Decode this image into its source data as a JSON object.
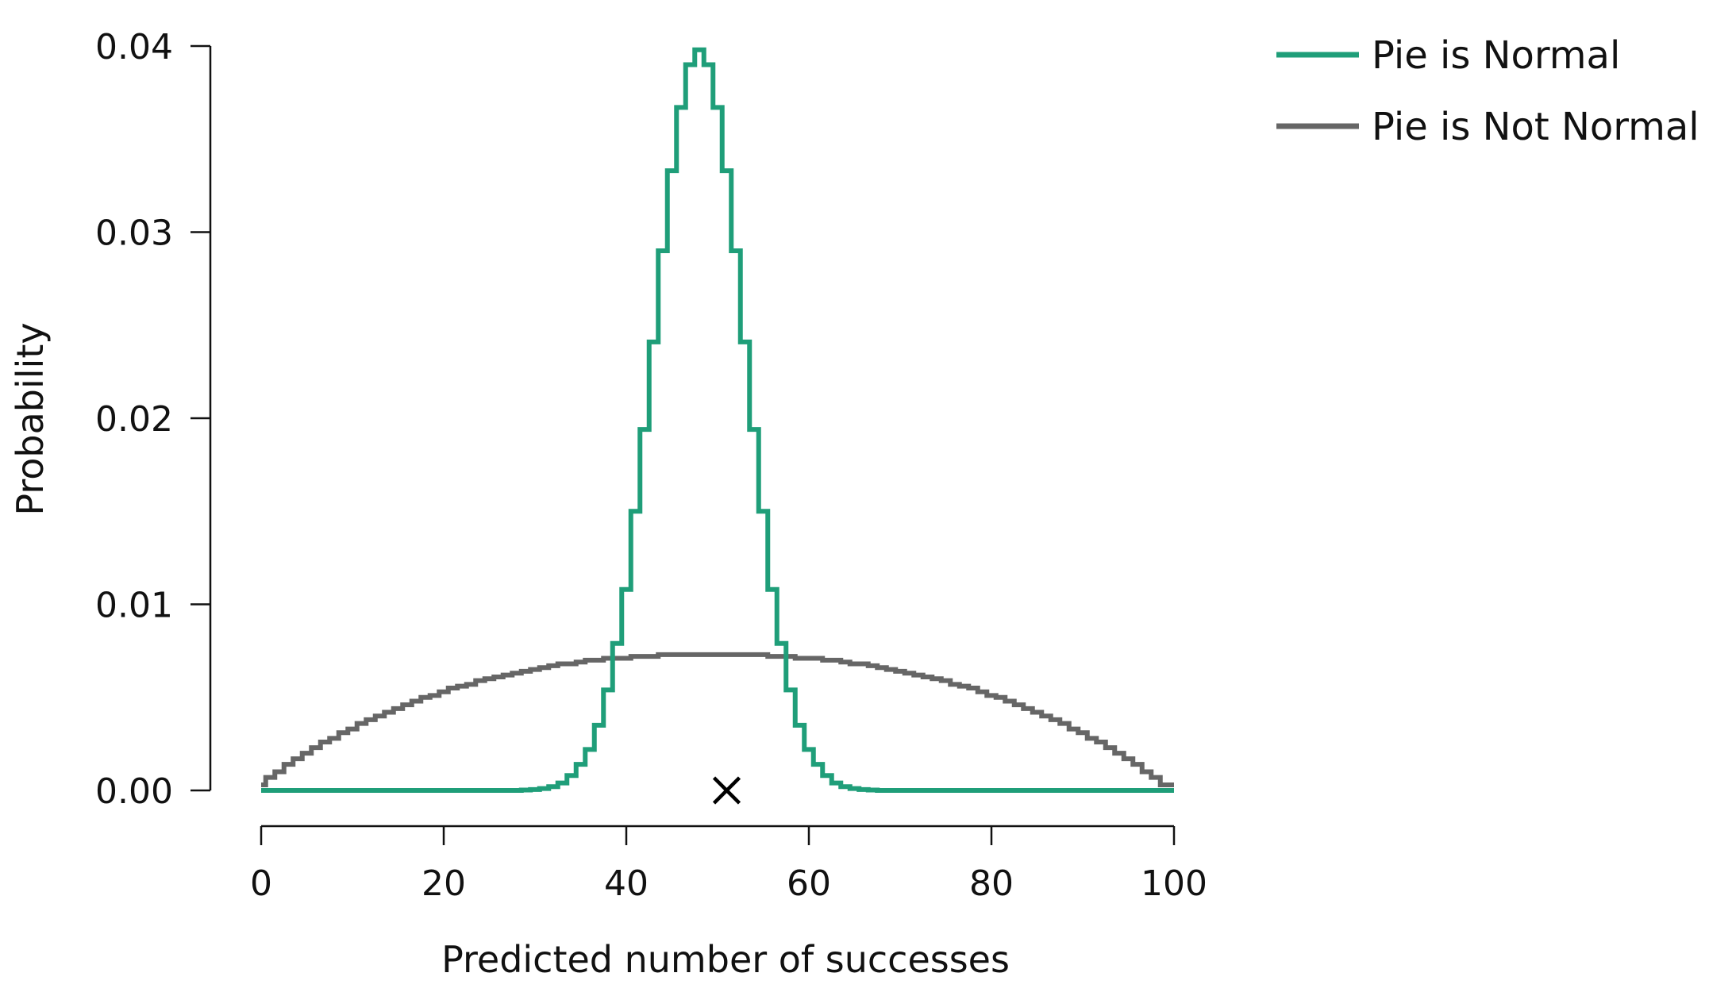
{
  "chart_data": {
    "type": "line",
    "step": true,
    "title": "",
    "xlabel": "Predicted number of successes",
    "ylabel": "Probability",
    "xlim": [
      0,
      100
    ],
    "ylim": [
      0,
      0.04
    ],
    "x_ticks": [
      0,
      20,
      40,
      60,
      80,
      100
    ],
    "x_tick_labels": [
      "0",
      "20",
      "40",
      "60",
      "80",
      "100"
    ],
    "y_ticks": [
      0,
      0.01,
      0.02,
      0.03,
      0.04
    ],
    "y_tick_labels": [
      "0.00",
      "0.01",
      "0.02",
      "0.03",
      "0.04"
    ],
    "grid": false,
    "legend": "top-right",
    "series": [
      {
        "name": "Pie is Normal",
        "color": "#1f9e79",
        "x_start": 0,
        "x_step": 1,
        "values": [
          0.0,
          0.0,
          0.0,
          0.0,
          0.0,
          0.0,
          0.0,
          0.0,
          0.0,
          0.0,
          0.0,
          0.0,
          0.0,
          0.0,
          0.0,
          0.0,
          0.0,
          0.0,
          0.0,
          0.0,
          0.0,
          0.0,
          0.0,
          0.0,
          0.0,
          0.0,
          0.0,
          0.0,
          0.0,
          2e-05,
          5e-05,
          0.0001,
          0.0002,
          0.0004,
          0.0008,
          0.0014,
          0.0022,
          0.0035,
          0.0054,
          0.0079,
          0.0108,
          0.015,
          0.0194,
          0.0241,
          0.029,
          0.0333,
          0.0367,
          0.039,
          0.0398,
          0.039,
          0.0367,
          0.0333,
          0.029,
          0.0241,
          0.0194,
          0.015,
          0.0108,
          0.0079,
          0.0054,
          0.0035,
          0.0022,
          0.0014,
          0.0008,
          0.0004,
          0.0002,
          0.0001,
          5e-05,
          2e-05,
          0.0,
          0.0,
          0.0,
          0.0,
          0.0,
          0.0,
          0.0,
          0.0,
          0.0,
          0.0,
          0.0,
          0.0,
          0.0,
          0.0,
          0.0,
          0.0,
          0.0,
          0.0,
          0.0,
          0.0,
          0.0,
          0.0,
          0.0,
          0.0,
          0.0,
          0.0,
          0.0,
          0.0,
          0.0,
          0.0,
          0.0,
          0.0,
          0.0
        ]
      },
      {
        "name": "Pie is Not Normal",
        "color": "#666666",
        "x_start": 0,
        "x_step": 1,
        "values": [
          0.0003,
          0.0007,
          0.001,
          0.0014,
          0.0017,
          0.002,
          0.0023,
          0.0026,
          0.0028,
          0.0031,
          0.0033,
          0.0036,
          0.0038,
          0.004,
          0.0042,
          0.0044,
          0.0046,
          0.0048,
          0.005,
          0.0051,
          0.0053,
          0.0055,
          0.0056,
          0.0057,
          0.0059,
          0.006,
          0.0061,
          0.0062,
          0.0063,
          0.0064,
          0.0065,
          0.0066,
          0.0067,
          0.0068,
          0.0068,
          0.0069,
          0.007,
          0.007,
          0.0071,
          0.0071,
          0.0071,
          0.0072,
          0.0072,
          0.0072,
          0.0073,
          0.0073,
          0.0073,
          0.0073,
          0.0073,
          0.0073,
          0.0073,
          0.0073,
          0.0073,
          0.0073,
          0.0073,
          0.0073,
          0.0072,
          0.0072,
          0.0072,
          0.0071,
          0.0071,
          0.0071,
          0.007,
          0.007,
          0.0069,
          0.0068,
          0.0068,
          0.0067,
          0.0066,
          0.0065,
          0.0064,
          0.0063,
          0.0062,
          0.0061,
          0.006,
          0.0059,
          0.0057,
          0.0056,
          0.0055,
          0.0053,
          0.0051,
          0.005,
          0.0048,
          0.0046,
          0.0044,
          0.0042,
          0.004,
          0.0038,
          0.0036,
          0.0033,
          0.0031,
          0.0028,
          0.0026,
          0.0023,
          0.002,
          0.0017,
          0.0014,
          0.001,
          0.0007,
          0.0003,
          0.0003
        ]
      }
    ],
    "annotations": [
      {
        "type": "marker",
        "shape": "cross",
        "x": 51,
        "y": 0,
        "color": "#000000"
      }
    ]
  }
}
